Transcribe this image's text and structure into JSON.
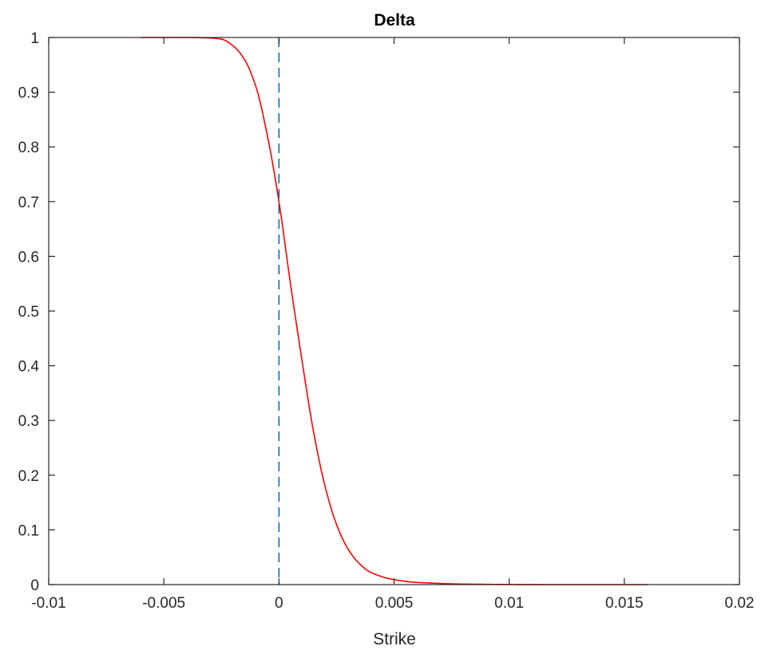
{
  "chart_data": {
    "type": "line",
    "title": "Delta",
    "xlabel": "Strike",
    "ylabel": "",
    "xlim": [
      -0.01,
      0.02
    ],
    "ylim": [
      0,
      1
    ],
    "grid": false,
    "xticks": [
      -0.01,
      -0.005,
      0,
      0.005,
      0.01,
      0.015,
      0.02
    ],
    "xtick_labels": [
      "-0.01",
      "-0.005",
      "0",
      "0.005",
      "0.01",
      "0.015",
      "0.02"
    ],
    "yticks": [
      0,
      0.1,
      0.2,
      0.3,
      0.4,
      0.5,
      0.6,
      0.7,
      0.8,
      0.9,
      1
    ],
    "ytick_labels": [
      "0",
      "0.1",
      "0.2",
      "0.3",
      "0.4",
      "0.5",
      "0.6",
      "0.7",
      "0.8",
      "0.9",
      "1"
    ],
    "series": [
      {
        "color": "#ff0000",
        "style": "solid",
        "x": [
          -0.006,
          -0.004,
          -0.003,
          -0.0025,
          -0.002,
          -0.0015,
          -0.001,
          -0.0005,
          0,
          0.0005,
          0.001,
          0.0015,
          0.002,
          0.0025,
          0.003,
          0.0035,
          0.004,
          0.005,
          0.006,
          0.008,
          0.01,
          0.012,
          0.016
        ],
        "y": [
          1.0,
          1.0,
          0.999,
          0.997,
          0.985,
          0.96,
          0.91,
          0.82,
          0.7,
          0.55,
          0.41,
          0.28,
          0.18,
          0.11,
          0.065,
          0.038,
          0.022,
          0.009,
          0.004,
          0.001,
          0.0002,
          0.0,
          0.0
        ]
      }
    ],
    "reference_lines": [
      {
        "orientation": "vertical",
        "x": 0,
        "color": "#0072bd",
        "style": "dashed"
      }
    ]
  }
}
